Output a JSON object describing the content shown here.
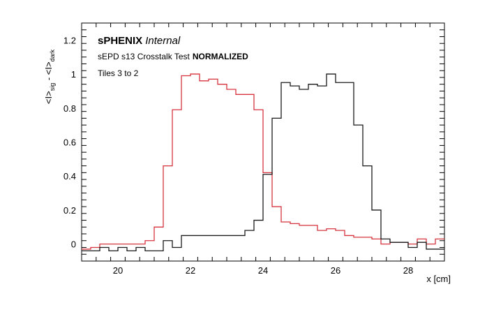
{
  "chart_data": {
    "type": "line",
    "title": "",
    "annotations": {
      "experiment_bold": "sPHENIX",
      "experiment_italic": "Internal",
      "test_plain": "sEPD s13 Crosstalk Test",
      "test_bold": "NORMALIZED",
      "tiles": "Tiles 3 to 2"
    },
    "xlabel": "x [cm]",
    "ylabel_parts": {
      "base": "<I>",
      "sig_sub": "sig",
      "dash": " - ",
      "dark_sub": "dark"
    },
    "xlim": [
      19.0,
      29.0
    ],
    "ylim": [
      -0.1,
      1.3
    ],
    "x_ticks": [
      20,
      22,
      24,
      26,
      28
    ],
    "y_ticks": [
      0,
      0.2,
      0.4,
      0.6,
      0.8,
      1.0,
      1.2
    ],
    "x_tick_labels": [
      "20",
      "22",
      "24",
      "26",
      "28"
    ],
    "y_tick_labels": [
      "0",
      "0.2",
      "0.4",
      "0.6",
      "0.8",
      "1",
      "1.2"
    ],
    "grid": false,
    "legend": "none",
    "series": [
      {
        "color": "#d6333f",
        "style": "step",
        "bin_edges": [
          19.0,
          19.25,
          19.5,
          19.75,
          20.0,
          20.25,
          20.5,
          20.75,
          21.0,
          21.25,
          21.5,
          21.75,
          22.0,
          22.25,
          22.5,
          22.75,
          23.0,
          23.25,
          23.5,
          23.75,
          24.0,
          24.25,
          24.5,
          24.75,
          25.0,
          25.25,
          25.5,
          25.75,
          26.0,
          26.25,
          26.5,
          26.75,
          27.0,
          27.25,
          27.5,
          27.75,
          28.0,
          28.25,
          28.5,
          28.75,
          29.0
        ],
        "values": [
          -0.03,
          -0.02,
          0.0,
          0.0,
          0.0,
          0.0,
          0.0,
          0.02,
          0.1,
          0.46,
          0.79,
          0.99,
          1.0,
          0.96,
          0.97,
          0.94,
          0.91,
          0.88,
          0.88,
          0.79,
          0.42,
          0.22,
          0.13,
          0.12,
          0.11,
          0.11,
          0.08,
          0.09,
          0.08,
          0.05,
          0.04,
          0.04,
          0.03,
          0.0,
          0.01,
          0.01,
          0.0,
          0.03,
          0.0,
          0.03
        ]
      },
      {
        "color": "#1a1a1a",
        "style": "step",
        "bin_edges": [
          19.0,
          19.25,
          19.5,
          19.75,
          20.0,
          20.25,
          20.5,
          20.75,
          21.0,
          21.25,
          21.5,
          21.75,
          22.0,
          22.25,
          22.5,
          22.75,
          23.0,
          23.25,
          23.5,
          23.75,
          24.0,
          24.25,
          24.5,
          24.75,
          25.0,
          25.25,
          25.5,
          25.75,
          26.0,
          26.25,
          26.5,
          26.75,
          27.0,
          27.25,
          27.5,
          27.75,
          28.0,
          28.25,
          28.5,
          28.75,
          29.0
        ],
        "values": [
          -0.04,
          -0.04,
          -0.02,
          -0.04,
          -0.02,
          -0.04,
          -0.02,
          -0.04,
          -0.04,
          0.02,
          -0.02,
          0.05,
          0.05,
          0.05,
          0.05,
          0.05,
          0.05,
          0.05,
          0.08,
          0.14,
          0.41,
          0.74,
          0.95,
          0.93,
          0.91,
          0.94,
          0.93,
          1.0,
          0.95,
          0.95,
          0.7,
          0.46,
          0.2,
          0.03,
          0.01,
          0.01,
          -0.02,
          0.01,
          -0.03,
          -0.03
        ]
      }
    ]
  }
}
